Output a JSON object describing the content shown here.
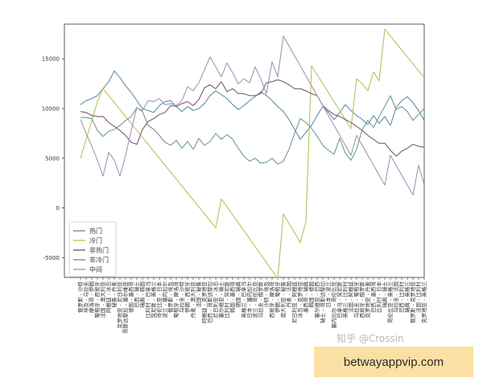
{
  "chart_data": {
    "type": "line",
    "ylim": [
      -7000,
      18500
    ],
    "yticks": [
      -5000,
      0,
      5000,
      10000,
      15000
    ],
    "grid": false,
    "legend_position": "bottom-left",
    "categories": [
      "俄罗斯 - 沙特",
      "埃及 - 乌拉圭",
      "摩洛哥 - 伊朗",
      "葡萄牙 - 西班牙",
      "法国 - 澳大利亚",
      "阿根廷 - 冰岛",
      "秘鲁 - 丹麦",
      "克罗地亚 - 尼日利亚",
      "哥斯达黎加 - 塞尔维亚",
      "德国 - 墨西哥",
      "巴西 - 瑞士",
      "瑞典 - 韩国",
      "比利时 - 巴拿马",
      "突尼斯 - 英格兰",
      "哥伦比亚 - 日本",
      "波兰 - 塞内加尔",
      "俄罗斯 - 埃及",
      "葡萄牙 - 摩洛哥",
      "乌拉圭 - 沙特",
      "伊朗 - 西班牙",
      "丹麦 - 澳大利亚",
      "法国 - 秘鲁",
      "阿根廷 - 克罗地亚",
      "巴西 - 哥斯达黎加",
      "尼日利亚 - 冰岛",
      "塞尔维亚 - 瑞士",
      "比利时 - 突尼斯",
      "韩国 - 墨西哥",
      "德国 - 瑞典",
      "英格兰 - 巴拿马",
      "日本 - 塞内加尔",
      "波兰 - 哥伦比亚",
      "乌拉圭 - 俄罗斯",
      "沙特 - 埃及",
      "西班牙 - 摩洛哥",
      "伊朗 - 葡萄牙",
      "澳大利亚 - 秘鲁",
      "丹麦 - 法国",
      "尼日利亚 - 阿根廷",
      "冰岛 - 克罗地亚",
      "墨西哥 - 瑞典",
      "韩国 - 德国",
      "塞尔维亚 - 巴西",
      "瑞士 - 哥斯达黎加",
      "日本 - 波兰",
      "塞内加尔 - 哥伦比亚",
      "巴拿马 - 突尼斯",
      "英格兰 - 比利时",
      "法国 - 阿根廷",
      "乌拉圭 - 葡萄牙",
      "西班牙 - 俄罗斯",
      "克罗地亚 - 丹麦",
      "巴西 - 墨西哥",
      "比利时 - 日本",
      "瑞典 - 瑞士",
      "哥伦比亚 - 英格兰",
      "乌拉圭 - 法国",
      "巴西 - 比利时",
      "瑞典 - 英格兰",
      "俄罗斯 - 克罗地亚",
      "法国 - 比利时",
      "克罗地亚 - 英格兰"
    ],
    "series": [
      {
        "name": "热门",
        "color": "#5f8fa8",
        "values": [
          10400,
          10800,
          11000,
          11300,
          12000,
          12700,
          13800,
          13100,
          12300,
          11600,
          10800,
          10000,
          9800,
          9600,
          10300,
          10700,
          10800,
          10200,
          9700,
          10200,
          9800,
          10000,
          10500,
          11300,
          11800,
          11400,
          11000,
          10400,
          9900,
          10300,
          10800,
          11200,
          11700,
          11300,
          10800,
          10200,
          9700,
          8900,
          7900,
          6900,
          7600,
          8300,
          9300,
          10200,
          9600,
          8900,
          9600,
          10400,
          9800,
          9300,
          8900,
          8400,
          9300,
          8500,
          9200,
          8300,
          10100,
          10800,
          11200,
          10600,
          9800,
          8800
        ]
      },
      {
        "name": "冷门",
        "color": "#c2bd60",
        "values": [
          5000,
          6900,
          8800,
          10700,
          12000,
          11300,
          10600,
          9900,
          9200,
          8500,
          7800,
          7100,
          6400,
          5700,
          5000,
          4300,
          3600,
          2900,
          2200,
          1500,
          800,
          100,
          -600,
          -1300,
          -2000,
          900,
          100,
          -700,
          -1500,
          -2300,
          -3100,
          -3900,
          -4700,
          -5500,
          -6300,
          -7100,
          -600,
          -1600,
          -2500,
          -3500,
          -1400,
          14300,
          13400,
          12500,
          11600,
          10700,
          9800,
          8900,
          8000,
          13000,
          12500,
          11800,
          13700,
          12800,
          18000,
          17300,
          16600,
          15900,
          15200,
          14500,
          13800,
          13100
        ]
      },
      {
        "name": "非热门",
        "color": "#7d5a6b",
        "values": [
          9700,
          9600,
          9300,
          9200,
          9200,
          8600,
          8200,
          7800,
          7300,
          6600,
          6400,
          7900,
          8700,
          9000,
          9400,
          9600,
          10300,
          10200,
          10500,
          10700,
          10300,
          10900,
          12100,
          12400,
          12000,
          12700,
          11700,
          12000,
          11500,
          11500,
          11300,
          11300,
          11500,
          12600,
          12700,
          12900,
          12700,
          12400,
          12000,
          12000,
          11800,
          11500,
          11300,
          10300,
          9800,
          9400,
          9200,
          8900,
          8600,
          8200,
          7800,
          7300,
          6900,
          6500,
          6500,
          5800,
          5200,
          5700,
          6000,
          6400,
          6200,
          6100
        ]
      },
      {
        "name": "非冷门",
        "color": "#6c9e8a",
        "values": [
          9100,
          9100,
          9000,
          7800,
          7200,
          7700,
          7900,
          8300,
          8800,
          9200,
          10100,
          9700,
          8300,
          7900,
          7300,
          6600,
          6300,
          6800,
          6000,
          6700,
          5900,
          7000,
          6300,
          6700,
          7500,
          6900,
          7400,
          6900,
          6000,
          5200,
          4700,
          5000,
          4500,
          4600,
          5000,
          4400,
          4700,
          5900,
          7500,
          9000,
          8600,
          8000,
          7200,
          6300,
          5800,
          5400,
          7000,
          5500,
          4800,
          5900,
          7900,
          8800,
          8100,
          9200,
          10200,
          11300,
          9900,
          10200,
          9700,
          8800,
          9400,
          10000
        ]
      },
      {
        "name": "中间",
        "color": "#9a9ab8",
        "values": [
          8900,
          7500,
          6200,
          4800,
          3200,
          5600,
          4800,
          3200,
          5300,
          7800,
          10100,
          9800,
          10800,
          10700,
          11000,
          10400,
          10500,
          10300,
          10800,
          12200,
          11800,
          12600,
          13900,
          15200,
          14200,
          13200,
          14600,
          13600,
          12500,
          13000,
          12600,
          14200,
          13000,
          11500,
          14700,
          13200,
          17300,
          16300,
          15300,
          14300,
          13300,
          12300,
          11300,
          10300,
          9300,
          8300,
          7300,
          6300,
          5300,
          7300,
          6300,
          5300,
          4300,
          3300,
          2300,
          5300,
          4300,
          3300,
          2300,
          1300,
          4300,
          2300
        ]
      }
    ]
  },
  "watermark": "知乎 @Crossin",
  "banner_text": "betwayappvip.com"
}
